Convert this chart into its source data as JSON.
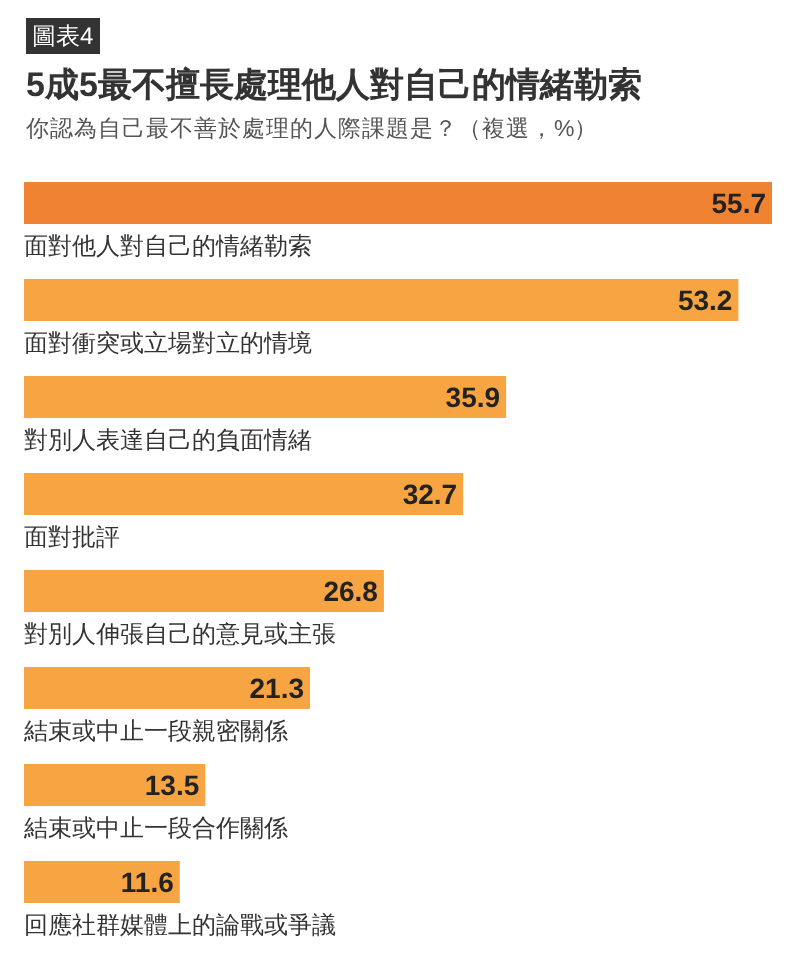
{
  "chart_data": {
    "type": "bar",
    "orientation": "horizontal",
    "title": "5成5最不擅長處理他人對自己的情緒勒索",
    "subtitle": "你認為自己最不善於處理的人際課題是？（複選，%）",
    "annotations": [
      "圖表4"
    ],
    "categories": [
      "面對他人對自己的情緒勒索",
      "面對衝突或立場對立的情境",
      "對別人表達自己的負面情緒",
      "面對批評",
      "對別人伸張自己的意見或主張",
      "結束或中止一段親密關係",
      "結束或中止一段合作關係",
      "回應社群媒體上的論戰或爭議"
    ],
    "values": [
      55.7,
      53.2,
      35.9,
      32.7,
      26.8,
      21.3,
      13.5,
      11.6
    ],
    "colors": [
      "#f08332",
      "#f7a443",
      "#f7a443",
      "#f7a443",
      "#f7a443",
      "#f7a443",
      "#f7a443",
      "#f7a443"
    ],
    "data_labels": true
  }
}
